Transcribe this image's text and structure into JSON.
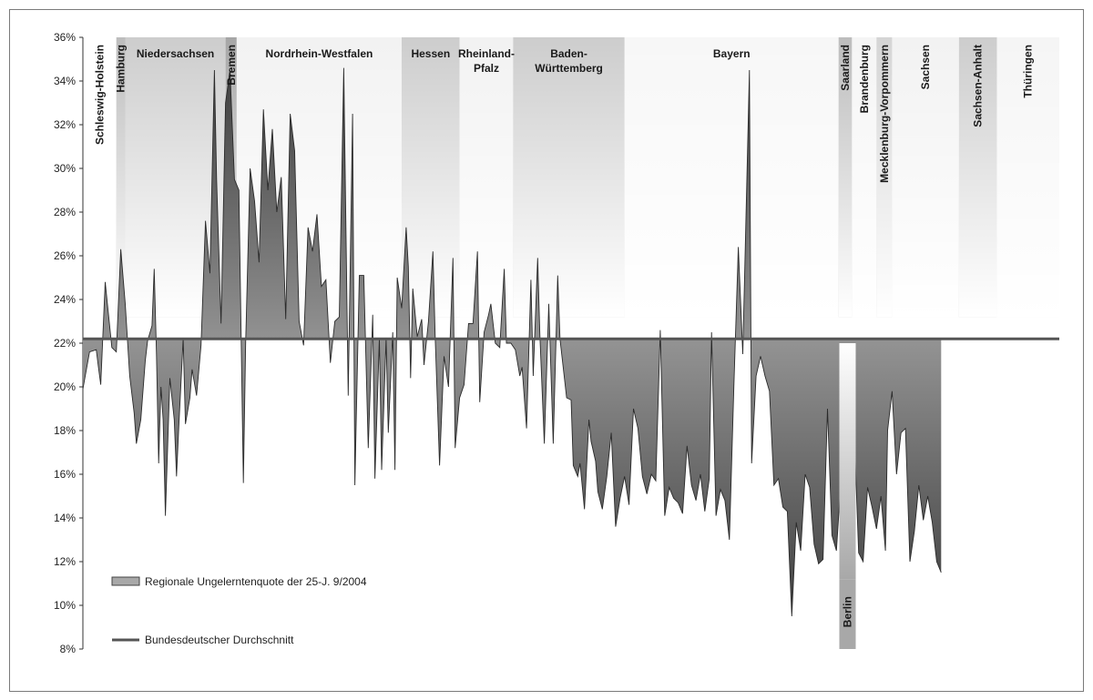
{
  "chart_data": {
    "type": "area",
    "ylim": [
      0.08,
      0.36
    ],
    "yticks": [
      "36%",
      "34%",
      "32%",
      "30%",
      "28%",
      "26%",
      "24%",
      "22%",
      "20%",
      "18%",
      "16%",
      "14%",
      "12%",
      "10%",
      "8%"
    ],
    "average": 0.222,
    "point_count": 439,
    "regions": [
      {
        "label": "Schleswig-Holstein",
        "start": 0,
        "end": 15,
        "orientation": "vertical",
        "shade": "#ffffff"
      },
      {
        "label": "Hamburg",
        "start": 15,
        "end": 19,
        "orientation": "vertical",
        "shade": "#bdbdbd"
      },
      {
        "label": "Niedersachsen",
        "start": 19,
        "end": 64,
        "orientation": "horizontal",
        "shade": "#cdcdcd"
      },
      {
        "label": "Bremen",
        "start": 64,
        "end": 69,
        "orientation": "vertical",
        "shade": "#a6a6a6"
      },
      {
        "label": "Nordrhein-Westfalen",
        "start": 69,
        "end": 143,
        "orientation": "horizontal",
        "shade": "#f2f2f2"
      },
      {
        "label": "Hessen",
        "start": 143,
        "end": 169,
        "orientation": "horizontal",
        "shade": "#cdcdcd"
      },
      {
        "label": "Rheinland-Pfalz",
        "lines": [
          "Rheinland-",
          "Pfalz"
        ],
        "start": 169,
        "end": 193,
        "orientation": "horizontal",
        "shade": "#f2f2f2"
      },
      {
        "label": "Baden-Württemberg",
        "lines": [
          "Baden-",
          "Württemberg"
        ],
        "start": 193,
        "end": 243,
        "orientation": "horizontal",
        "shade": "#cdcdcd"
      },
      {
        "label": "Bayern",
        "start": 243,
        "end": 339,
        "orientation": "horizontal",
        "shade": "#f7f7f7"
      },
      {
        "label": "Saarland",
        "start": 339,
        "end": 345,
        "orientation": "vertical",
        "shade": "#bdbdbd"
      },
      {
        "label": "Brandenburg",
        "start": 345,
        "end": 356,
        "orientation": "vertical",
        "shade": "#f5f5f5"
      },
      {
        "label": "Mecklenburg-Vorpommern",
        "start": 356,
        "end": 363,
        "orientation": "vertical",
        "shade": "#d5d5d5"
      },
      {
        "label": "Sachsen",
        "start": 363,
        "end": 393,
        "orientation": "vertical",
        "shade": "#f2f2f2"
      },
      {
        "label": "Sachsen-Anhalt",
        "start": 393,
        "end": 410,
        "orientation": "vertical",
        "shade": "#cdcdcd"
      },
      {
        "label": "Thüringen",
        "start": 410,
        "end": 439,
        "orientation": "vertical",
        "shade": "#f5f5f5"
      }
    ],
    "berlin": {
      "label": "Berlin",
      "index": 343
    },
    "keypoints": [
      [
        0,
        0.199
      ],
      [
        3,
        0.216
      ],
      [
        6,
        0.217
      ],
      [
        7,
        0.209
      ],
      [
        8,
        0.201
      ],
      [
        10,
        0.248
      ],
      [
        11,
        0.238
      ],
      [
        13,
        0.218
      ],
      [
        15,
        0.216
      ],
      [
        17,
        0.263
      ],
      [
        19,
        0.238
      ],
      [
        21,
        0.205
      ],
      [
        23,
        0.188
      ],
      [
        24,
        0.174
      ],
      [
        26,
        0.185
      ],
      [
        28,
        0.212
      ],
      [
        29,
        0.221
      ],
      [
        31,
        0.228
      ],
      [
        32,
        0.254
      ],
      [
        33,
        0.215
      ],
      [
        34,
        0.165
      ],
      [
        35,
        0.2
      ],
      [
        36,
        0.185
      ],
      [
        37,
        0.141
      ],
      [
        39,
        0.204
      ],
      [
        41,
        0.185
      ],
      [
        42,
        0.159
      ],
      [
        43,
        0.181
      ],
      [
        45,
        0.222
      ],
      [
        46,
        0.183
      ],
      [
        48,
        0.195
      ],
      [
        49,
        0.208
      ],
      [
        51,
        0.196
      ],
      [
        53,
        0.219
      ],
      [
        55,
        0.276
      ],
      [
        57,
        0.252
      ],
      [
        59,
        0.345
      ],
      [
        60,
        0.295
      ],
      [
        62,
        0.229
      ],
      [
        64,
        0.33
      ],
      [
        66,
        0.345
      ],
      [
        68,
        0.295
      ],
      [
        70,
        0.29
      ],
      [
        72,
        0.156
      ],
      [
        73,
        0.22
      ],
      [
        75,
        0.3
      ],
      [
        77,
        0.285
      ],
      [
        79,
        0.257
      ],
      [
        81,
        0.327
      ],
      [
        83,
        0.29
      ],
      [
        85,
        0.318
      ],
      [
        87,
        0.28
      ],
      [
        89,
        0.296
      ],
      [
        91,
        0.231
      ],
      [
        93,
        0.325
      ],
      [
        95,
        0.308
      ],
      [
        97,
        0.23
      ],
      [
        99,
        0.219
      ],
      [
        101,
        0.273
      ],
      [
        103,
        0.262
      ],
      [
        105,
        0.279
      ],
      [
        107,
        0.246
      ],
      [
        109,
        0.249
      ],
      [
        111,
        0.211
      ],
      [
        113,
        0.23
      ],
      [
        115,
        0.232
      ],
      [
        117,
        0.346
      ],
      [
        119,
        0.196
      ],
      [
        121,
        0.325
      ],
      [
        122,
        0.155
      ],
      [
        124,
        0.251
      ],
      [
        126,
        0.251
      ],
      [
        128,
        0.172
      ],
      [
        130,
        0.233
      ],
      [
        131,
        0.158
      ],
      [
        133,
        0.222
      ],
      [
        134,
        0.162
      ],
      [
        136,
        0.222
      ],
      [
        137,
        0.179
      ],
      [
        139,
        0.225
      ],
      [
        140,
        0.162
      ],
      [
        141,
        0.25
      ],
      [
        143,
        0.236
      ],
      [
        145,
        0.273
      ],
      [
        146,
        0.255
      ],
      [
        147,
        0.204
      ],
      [
        148,
        0.245
      ],
      [
        150,
        0.223
      ],
      [
        152,
        0.231
      ],
      [
        153,
        0.21
      ],
      [
        155,
        0.23
      ],
      [
        157,
        0.262
      ],
      [
        158,
        0.224
      ],
      [
        160,
        0.164
      ],
      [
        162,
        0.214
      ],
      [
        164,
        0.2
      ],
      [
        166,
        0.259
      ],
      [
        167,
        0.172
      ],
      [
        169,
        0.195
      ],
      [
        171,
        0.201
      ],
      [
        173,
        0.229
      ],
      [
        175,
        0.229
      ],
      [
        177,
        0.262
      ],
      [
        178,
        0.193
      ],
      [
        180,
        0.225
      ],
      [
        182,
        0.233
      ],
      [
        183,
        0.238
      ],
      [
        185,
        0.22
      ],
      [
        187,
        0.218
      ],
      [
        189,
        0.254
      ],
      [
        190,
        0.22
      ],
      [
        192,
        0.22
      ],
      [
        194,
        0.217
      ],
      [
        196,
        0.205
      ],
      [
        197,
        0.209
      ],
      [
        199,
        0.181
      ],
      [
        201,
        0.249
      ],
      [
        202,
        0.205
      ],
      [
        204,
        0.259
      ],
      [
        205,
        0.224
      ],
      [
        207,
        0.174
      ],
      [
        209,
        0.238
      ],
      [
        211,
        0.174
      ],
      [
        213,
        0.251
      ],
      [
        214,
        0.222
      ],
      [
        217,
        0.195
      ],
      [
        219,
        0.194
      ],
      [
        220,
        0.164
      ],
      [
        222,
        0.159
      ],
      [
        223,
        0.165
      ],
      [
        225,
        0.144
      ],
      [
        227,
        0.185
      ],
      [
        228,
        0.175
      ],
      [
        230,
        0.166
      ],
      [
        231,
        0.152
      ],
      [
        233,
        0.144
      ],
      [
        235,
        0.159
      ],
      [
        237,
        0.179
      ],
      [
        239,
        0.136
      ],
      [
        241,
        0.149
      ],
      [
        243,
        0.159
      ],
      [
        245,
        0.146
      ],
      [
        247,
        0.19
      ],
      [
        249,
        0.181
      ],
      [
        251,
        0.159
      ],
      [
        253,
        0.151
      ],
      [
        255,
        0.16
      ],
      [
        257,
        0.157
      ],
      [
        259,
        0.226
      ],
      [
        261,
        0.141
      ],
      [
        263,
        0.154
      ],
      [
        265,
        0.149
      ],
      [
        267,
        0.147
      ],
      [
        269,
        0.142
      ],
      [
        271,
        0.173
      ],
      [
        273,
        0.155
      ],
      [
        275,
        0.148
      ],
      [
        277,
        0.16
      ],
      [
        279,
        0.143
      ],
      [
        281,
        0.158
      ],
      [
        282,
        0.225
      ],
      [
        284,
        0.141
      ],
      [
        286,
        0.153
      ],
      [
        288,
        0.148
      ],
      [
        290,
        0.13
      ],
      [
        292,
        0.2
      ],
      [
        294,
        0.264
      ],
      [
        296,
        0.215
      ],
      [
        299,
        0.345
      ],
      [
        300,
        0.165
      ],
      [
        302,
        0.205
      ],
      [
        304,
        0.214
      ],
      [
        306,
        0.205
      ],
      [
        308,
        0.198
      ],
      [
        310,
        0.155
      ],
      [
        312,
        0.158
      ],
      [
        314,
        0.145
      ],
      [
        316,
        0.143
      ],
      [
        318,
        0.095
      ],
      [
        320,
        0.138
      ],
      [
        322,
        0.125
      ],
      [
        324,
        0.16
      ],
      [
        326,
        0.154
      ],
      [
        328,
        0.128
      ],
      [
        330,
        0.119
      ],
      [
        332,
        0.121
      ],
      [
        334,
        0.19
      ],
      [
        336,
        0.132
      ],
      [
        338,
        0.125
      ],
      [
        340,
        0.156
      ],
      [
        342,
        0.148
      ],
      [
        344,
        0.201
      ],
      [
        346,
        0.18
      ],
      [
        348,
        0.124
      ],
      [
        350,
        0.12
      ],
      [
        352,
        0.154
      ],
      [
        354,
        0.145
      ],
      [
        356,
        0.135
      ],
      [
        358,
        0.15
      ],
      [
        360,
        0.125
      ],
      [
        361,
        0.18
      ],
      [
        363,
        0.198
      ],
      [
        365,
        0.16
      ],
      [
        367,
        0.179
      ],
      [
        369,
        0.181
      ],
      [
        371,
        0.12
      ],
      [
        373,
        0.134
      ],
      [
        375,
        0.155
      ],
      [
        377,
        0.139
      ],
      [
        379,
        0.15
      ],
      [
        381,
        0.138
      ],
      [
        383,
        0.12
      ],
      [
        385,
        0.115
      ]
    ],
    "legend": [
      {
        "label": "Regionale Ungelerntenquote der 25-J. 9/2004",
        "kind": "area"
      },
      {
        "label": "Bundesdeutscher Durchschnitt",
        "kind": "line"
      }
    ]
  }
}
